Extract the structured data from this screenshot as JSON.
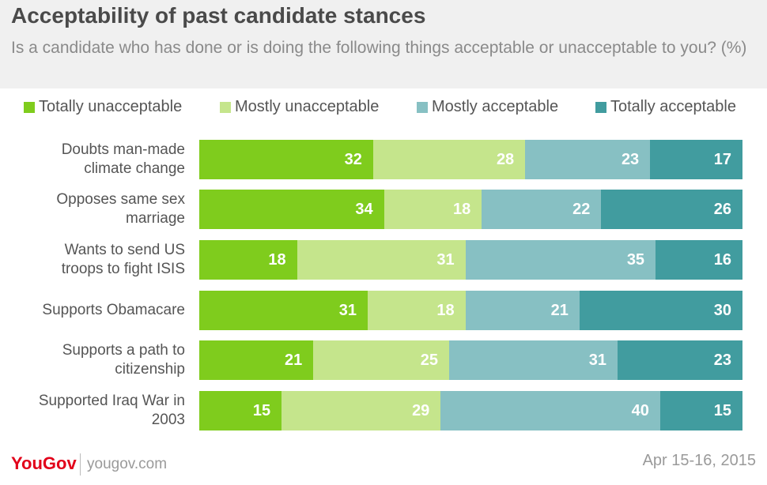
{
  "chart_data": {
    "type": "bar",
    "orientation": "horizontal",
    "stacked": true,
    "title": "Acceptability of past candidate stances",
    "subtitle": "Is a candidate who has done or is doing the following things acceptable or unacceptable to you? (%)",
    "categories": [
      "Doubts man-made climate change",
      "Opposes same sex marriage",
      "Wants to send US troops to fight ISIS",
      "Supports Obamacare",
      "Supports a path to citizenship",
      "Supported Iraq War in 2003"
    ],
    "category_lines": [
      [
        "Doubts man-made",
        "climate change"
      ],
      [
        "Opposes same sex",
        "marriage"
      ],
      [
        "Wants to send US",
        "troops to fight ISIS"
      ],
      [
        "Supports Obamacare"
      ],
      [
        "Supports a path to",
        "citizenship"
      ],
      [
        "Supported Iraq War in",
        "2003"
      ]
    ],
    "series": [
      {
        "name": "Totally unacceptable",
        "color": "#7fcc1d",
        "values": [
          32,
          34,
          18,
          31,
          21,
          15
        ]
      },
      {
        "name": "Mostly unacceptable",
        "color": "#c5e58c",
        "values": [
          28,
          18,
          31,
          18,
          25,
          29
        ]
      },
      {
        "name": "Mostly acceptable",
        "color": "#87c0c3",
        "values": [
          23,
          22,
          35,
          21,
          31,
          40
        ]
      },
      {
        "name": "Totally acceptable",
        "color": "#419c9f",
        "values": [
          17,
          26,
          16,
          30,
          23,
          15
        ]
      }
    ],
    "legend_position": "top",
    "grid": false
  },
  "footer": {
    "brand": "YouGov",
    "site": "yougov.com",
    "date": "Apr 15-16, 2015"
  }
}
